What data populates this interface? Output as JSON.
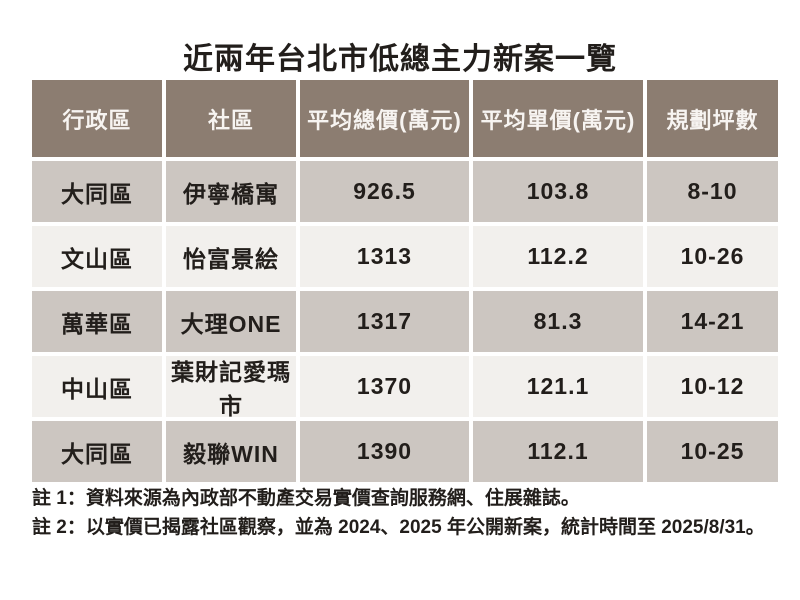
{
  "title": "近兩年台北市低總主力新案一覽",
  "colors": {
    "page_bg": "#ffffff",
    "header_bg": "#8c7d71",
    "header_text": "#f7f4f1",
    "row_gray": "#ccc6c1",
    "row_light": "#f2f0ed",
    "divider": "#ffffff",
    "text_dark": "#221e1b"
  },
  "chart_data": {
    "type": "table",
    "title": "近兩年台北市低總主力新案一覽",
    "columns": [
      "行政區",
      "社區",
      "平均總價(萬元)",
      "平均單價(萬元)",
      "規劃坪數"
    ],
    "rows": [
      [
        "大同區",
        "伊寧橋寓",
        "926.5",
        "103.8",
        "8-10"
      ],
      [
        "文山區",
        "怡富景絵",
        "1313",
        "112.2",
        "10-26"
      ],
      [
        "萬華區",
        "大理ONE",
        "1317",
        "81.3",
        "14-21"
      ],
      [
        "中山區",
        "葉財記愛瑪市",
        "1370",
        "121.1",
        "10-12"
      ],
      [
        "大同區",
        "毅聯WIN",
        "1390",
        "112.1",
        "10-25"
      ]
    ]
  },
  "notes": [
    "註 1：資料來源為內政部不動產交易實價查詢服務網、住展雜誌。",
    "註 2：以實價已揭露社區觀察，並為 2024、2025 年公開新案，統計時間至 2025/8/31。"
  ]
}
